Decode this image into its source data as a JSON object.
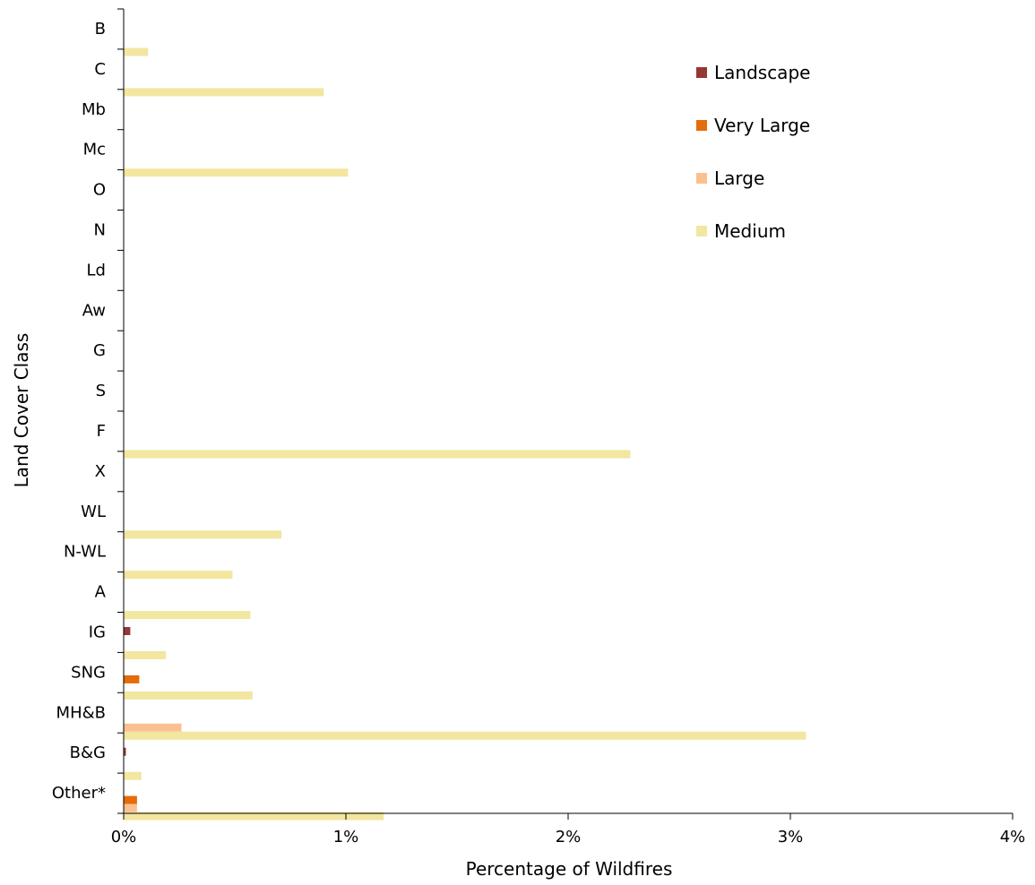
{
  "chart_data": {
    "type": "bar",
    "orientation": "horizontal",
    "title": "",
    "xlabel": "Percentage of Wildfires",
    "ylabel": "Land Cover Class",
    "xlim": [
      0,
      4
    ],
    "x_ticks": [
      "0%",
      "1%",
      "2%",
      "3%",
      "4%"
    ],
    "grid": false,
    "legend_position": "top-right",
    "categories": [
      "B",
      "C",
      "Mb",
      "Mc",
      "O",
      "N",
      "Ld",
      "Aw",
      "G",
      "S",
      "F",
      "X",
      "WL",
      "N-WL",
      "A",
      "IG",
      "SNG",
      "MH&B",
      "B&G",
      "Other*"
    ],
    "series": [
      {
        "name": "Landscape",
        "color": "#953735",
        "values": [
          0,
          0,
          0,
          0,
          0,
          0,
          0,
          0,
          0,
          0,
          0,
          0,
          0,
          0,
          0,
          0.03,
          0,
          0,
          0.01,
          0
        ]
      },
      {
        "name": "Very Large",
        "color": "#E46C0A",
        "values": [
          0,
          0,
          0,
          0,
          0,
          0,
          0,
          0,
          0,
          0,
          0,
          0,
          0,
          0,
          0,
          0,
          0.07,
          0,
          0,
          0.06
        ]
      },
      {
        "name": "Large",
        "color": "#FAC090",
        "values": [
          0,
          0,
          0,
          0,
          0,
          0,
          0,
          0,
          0,
          0,
          0,
          0,
          0,
          0,
          0,
          0,
          0,
          0.26,
          0,
          0.06
        ]
      },
      {
        "name": "Medium",
        "color": "#F2E6A0",
        "values": [
          0.11,
          0.9,
          0,
          1.01,
          0,
          0,
          0,
          0,
          0,
          0,
          2.28,
          0,
          0.71,
          0.49,
          0.57,
          0.19,
          0.58,
          3.07,
          0.08,
          1.17
        ]
      }
    ]
  }
}
